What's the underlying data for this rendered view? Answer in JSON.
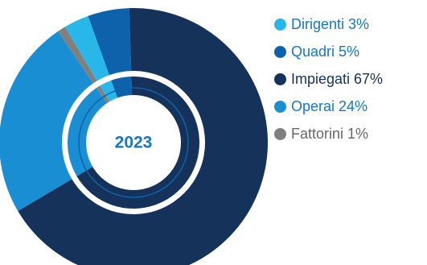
{
  "chart_data": {
    "type": "pie",
    "center_label": "2023",
    "categories": [
      "Dirigenti",
      "Quadri",
      "Impiegati",
      "Operai",
      "Fattorini"
    ],
    "values": [
      3,
      5,
      67,
      24,
      1
    ],
    "legend": [
      {
        "label": "Dirigenti 3%",
        "color": "#29b6e9"
      },
      {
        "label": "Quadri 5%",
        "color": "#0d62ab"
      },
      {
        "label": "Impiegati 67%",
        "color": "#15325a"
      },
      {
        "label": "Operai 24%",
        "color": "#1a8ed3"
      },
      {
        "label": "Fattorini 1%",
        "color": "#808080"
      }
    ],
    "legend_placement": "right",
    "label_color": "#1577c9"
  }
}
